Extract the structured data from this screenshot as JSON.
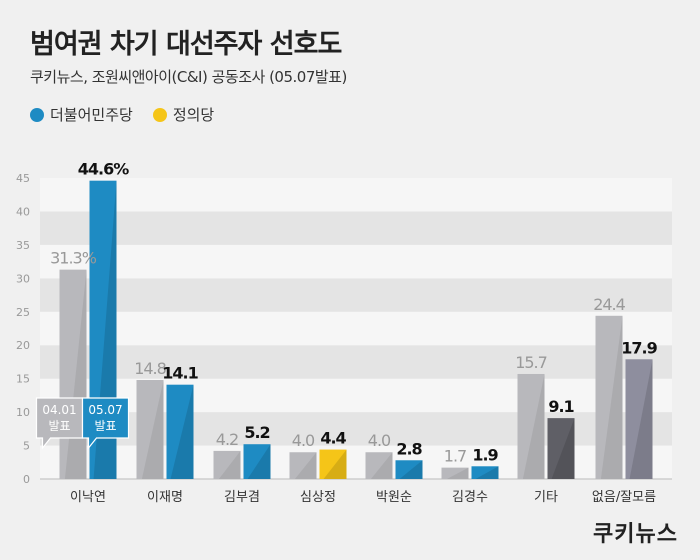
{
  "header": {
    "title": "범여권 차기 대선주자 선호도",
    "subtitle": "쿠키뉴스, 조원씨앤아이(C&I) 공동조사 (05.07발표)"
  },
  "legend": [
    {
      "label": "더불어민주당",
      "color": "#1e8bc3"
    },
    {
      "label": "정의당",
      "color": "#f5c518"
    }
  ],
  "brand": {
    "logo_text": "쿠키뉴스"
  },
  "chart_data": {
    "type": "bar",
    "categories": [
      "이낙연",
      "이재명",
      "김부겸",
      "심상정",
      "박원순",
      "김경수",
      "기타",
      "없음/잘모름"
    ],
    "series": [
      {
        "name": "04.01 발표",
        "values": [
          31.3,
          14.8,
          4.2,
          4.0,
          4.0,
          1.7,
          15.7,
          24.4
        ]
      },
      {
        "name": "05.07 발표",
        "values": [
          44.6,
          14.1,
          5.2,
          4.4,
          2.8,
          1.9,
          9.1,
          17.9
        ]
      }
    ],
    "value_labels": {
      "prev": [
        "31.3%",
        "14.8",
        "4.2",
        "4.0",
        "4.0",
        "1.7",
        "15.7",
        "24.4"
      ],
      "curr": [
        "44.6%",
        "14.1",
        "5.2",
        "4.4",
        "2.8",
        "1.9",
        "9.1",
        "17.9"
      ]
    },
    "callouts": {
      "prev": [
        "04.01",
        "발표"
      ],
      "curr": [
        "05.07",
        "발표"
      ]
    },
    "yticks": [
      0,
      5,
      10,
      15,
      20,
      25,
      30,
      35,
      40,
      45
    ],
    "ylim": [
      0,
      45
    ],
    "grid": true,
    "colors": {
      "prev": "#b8b8bc",
      "curr_party": [
        "#1e8bc3",
        "#1e8bc3",
        "#1e8bc3",
        "#f5c518",
        "#1e8bc3",
        "#1e8bc3",
        "#5f5f66",
        "#8e8e9e"
      ]
    }
  }
}
